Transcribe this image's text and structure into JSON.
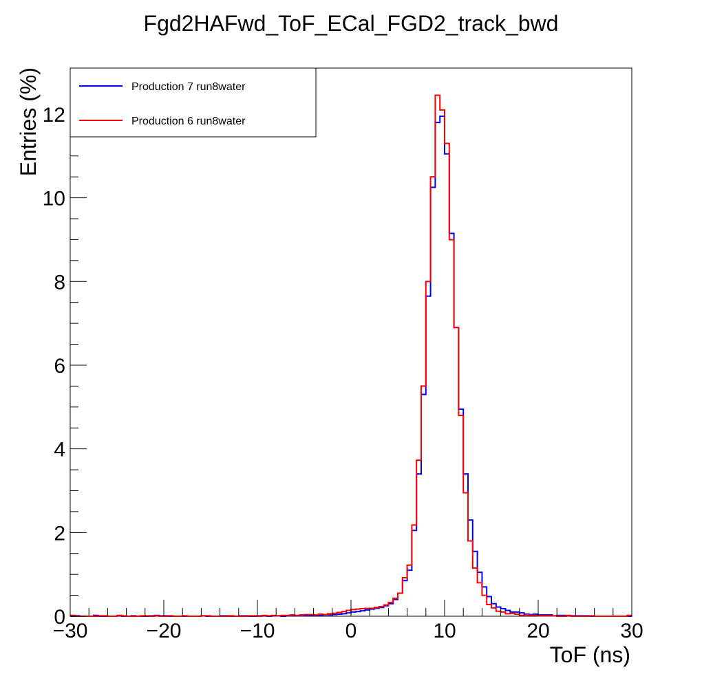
{
  "chart_data": {
    "type": "line",
    "style": "step-histogram",
    "title": "Fgd2HAFwd_ToF_ECal_FGD2_track_bwd",
    "xlabel": "ToF (ns)",
    "ylabel": "Entries (%)",
    "xlim": [
      -30,
      30
    ],
    "ylim": [
      0,
      13.1
    ],
    "bin_width": 0.5,
    "bin_start": -30,
    "grid": false,
    "legend_position": "top-left",
    "x_ticks": [
      -30,
      -20,
      -10,
      0,
      10,
      20,
      30
    ],
    "x_tick_labels": [
      "−30",
      "−20",
      "−10",
      "0",
      "10",
      "20",
      "30"
    ],
    "y_ticks": [
      0,
      2,
      4,
      6,
      8,
      10,
      12
    ],
    "y_tick_labels": [
      "0",
      "2",
      "4",
      "6",
      "8",
      "10",
      "12"
    ],
    "series": [
      {
        "name": "Production 7 run8water",
        "color": "#0000ff",
        "values": [
          0,
          0.01,
          0,
          0,
          0,
          0.02,
          0,
          0,
          0,
          0,
          0.01,
          0,
          0,
          0.01,
          0,
          0,
          0,
          0.01,
          0.02,
          0.01,
          0.01,
          0,
          0,
          0,
          0,
          0,
          0,
          0,
          0.01,
          0,
          0,
          0,
          0.01,
          0.01,
          0,
          0,
          0.01,
          0.01,
          0,
          0,
          0.01,
          0.01,
          0,
          0.01,
          0.01,
          0,
          0.01,
          0.02,
          0.01,
          0.01,
          0.02,
          0.02,
          0.02,
          0.02,
          0.03,
          0.03,
          0.04,
          0.05,
          0.06,
          0.08,
          0.1,
          0.11,
          0.13,
          0.15,
          0.17,
          0.19,
          0.21,
          0.25,
          0.3,
          0.4,
          0.55,
          0.85,
          1.1,
          2.05,
          3.4,
          5.3,
          7.65,
          10.25,
          11.8,
          11.95,
          11.05,
          9.15,
          6.9,
          4.95,
          3.4,
          2.3,
          1.55,
          1.05,
          0.7,
          0.47,
          0.3,
          0.22,
          0.18,
          0.14,
          0.1,
          0.1,
          0.08,
          0.05,
          0.04,
          0.05,
          0.03,
          0.03,
          0.03,
          0.01,
          0.02,
          0.02,
          0.01,
          0.01,
          0.01,
          0.01,
          0.01,
          0,
          0,
          0,
          0,
          0,
          0,
          0,
          0,
          0
        ]
      },
      {
        "name": "Production 6 run8water",
        "color": "#ff0000",
        "values": [
          0.02,
          0,
          0,
          0,
          0,
          0,
          0.01,
          0.01,
          0,
          0,
          0.02,
          0.01,
          0,
          0,
          0,
          0.01,
          0.01,
          0,
          0.01,
          0,
          0,
          0.01,
          0,
          0,
          0.01,
          0,
          0,
          0,
          0.01,
          0.01,
          0,
          0,
          0,
          0,
          0.01,
          0,
          0,
          0,
          0.01,
          0.01,
          0,
          0.02,
          0.01,
          0.02,
          0.01,
          0.02,
          0.02,
          0.03,
          0.02,
          0.03,
          0.04,
          0.04,
          0.03,
          0.05,
          0.04,
          0.06,
          0.07,
          0.09,
          0.11,
          0.14,
          0.16,
          0.17,
          0.18,
          0.19,
          0.19,
          0.21,
          0.23,
          0.27,
          0.33,
          0.43,
          0.55,
          0.92,
          1.22,
          2.18,
          3.73,
          5.5,
          8.0,
          10.5,
          12.45,
          12.1,
          11.3,
          9.0,
          6.9,
          4.8,
          2.95,
          1.8,
          1.15,
          0.8,
          0.5,
          0.28,
          0.2,
          0.12,
          0.1,
          0.06,
          0.07,
          0.05,
          0.02,
          0.03,
          0.02,
          0.02,
          0.01,
          0.01,
          0.01,
          0.01,
          0,
          0,
          0.02,
          0,
          0,
          0,
          0,
          0.01,
          0,
          0,
          0,
          0,
          0,
          0,
          0,
          0.02
        ]
      }
    ]
  }
}
